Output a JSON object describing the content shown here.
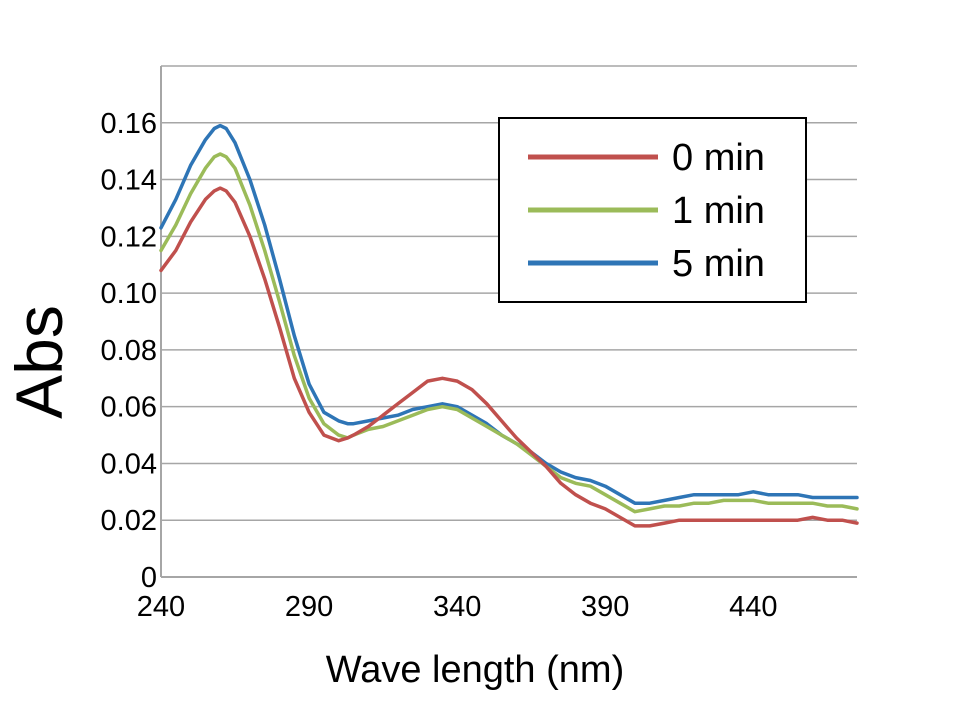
{
  "chart_data": {
    "type": "line",
    "title": "",
    "xlabel": "Wave length (nm)",
    "ylabel": "Abs",
    "xlim": [
      240,
      475
    ],
    "ylim": [
      0,
      0.18
    ],
    "grid": "horizontal",
    "legend_position": "top-right",
    "x_ticks": [
      240,
      290,
      340,
      390,
      440
    ],
    "x_tick_labels": [
      "240",
      "290",
      "340",
      "390",
      "440"
    ],
    "y_ticks": [
      0,
      0.02,
      0.04,
      0.06,
      0.08,
      0.1,
      0.12,
      0.14,
      0.16
    ],
    "y_tick_labels": [
      "0",
      "0.02",
      "0.04",
      "0.06",
      "0.08",
      "0.10",
      "0.12",
      "0.14",
      "0.16"
    ],
    "x": [
      240,
      245,
      250,
      255,
      258,
      260,
      262,
      265,
      270,
      275,
      280,
      285,
      290,
      295,
      300,
      303,
      305,
      310,
      315,
      320,
      325,
      330,
      335,
      340,
      345,
      350,
      355,
      360,
      365,
      370,
      375,
      380,
      385,
      390,
      395,
      400,
      405,
      410,
      415,
      420,
      425,
      430,
      435,
      440,
      445,
      450,
      455,
      460,
      465,
      470,
      475
    ],
    "series": [
      {
        "name": "0 min",
        "color": "#c0504d",
        "values": [
          0.108,
          0.115,
          0.125,
          0.133,
          0.136,
          0.137,
          0.136,
          0.132,
          0.12,
          0.105,
          0.088,
          0.07,
          0.058,
          0.05,
          0.048,
          0.049,
          0.05,
          0.053,
          0.057,
          0.061,
          0.065,
          0.069,
          0.07,
          0.069,
          0.066,
          0.061,
          0.055,
          0.049,
          0.044,
          0.039,
          0.033,
          0.029,
          0.026,
          0.024,
          0.021,
          0.018,
          0.018,
          0.019,
          0.02,
          0.02,
          0.02,
          0.02,
          0.02,
          0.02,
          0.02,
          0.02,
          0.02,
          0.021,
          0.02,
          0.02,
          0.019
        ]
      },
      {
        "name": "1 min",
        "color": "#9bbb59",
        "values": [
          0.115,
          0.124,
          0.135,
          0.144,
          0.148,
          0.149,
          0.148,
          0.144,
          0.131,
          0.115,
          0.097,
          0.078,
          0.063,
          0.054,
          0.05,
          0.049,
          0.05,
          0.052,
          0.053,
          0.055,
          0.057,
          0.059,
          0.06,
          0.059,
          0.056,
          0.053,
          0.05,
          0.047,
          0.043,
          0.039,
          0.035,
          0.033,
          0.032,
          0.029,
          0.026,
          0.023,
          0.024,
          0.025,
          0.025,
          0.026,
          0.026,
          0.027,
          0.027,
          0.027,
          0.026,
          0.026,
          0.026,
          0.026,
          0.025,
          0.025,
          0.024
        ]
      },
      {
        "name": "5 min",
        "color": "#2e75b6",
        "values": [
          0.123,
          0.133,
          0.145,
          0.154,
          0.158,
          0.159,
          0.158,
          0.153,
          0.14,
          0.124,
          0.105,
          0.085,
          0.068,
          0.058,
          0.055,
          0.054,
          0.054,
          0.055,
          0.056,
          0.057,
          0.059,
          0.06,
          0.061,
          0.06,
          0.057,
          0.054,
          0.05,
          0.047,
          0.044,
          0.04,
          0.037,
          0.035,
          0.034,
          0.032,
          0.029,
          0.026,
          0.026,
          0.027,
          0.028,
          0.029,
          0.029,
          0.029,
          0.029,
          0.03,
          0.029,
          0.029,
          0.029,
          0.028,
          0.028,
          0.028,
          0.028
        ]
      }
    ]
  }
}
